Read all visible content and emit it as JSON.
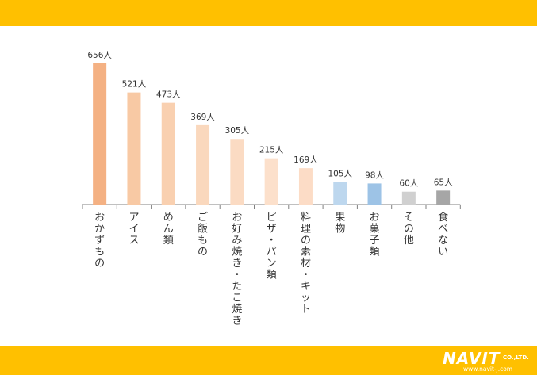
{
  "chart_data": {
    "type": "bar",
    "categories": [
      "おかずもの",
      "アイス",
      "めん類",
      "ご飯もの",
      "お好み焼き・たこ焼き",
      "ピザ・パン類",
      "料理の素材・キット",
      "果物",
      "お菓子類",
      "その他",
      "食べない"
    ],
    "values": [
      656,
      521,
      473,
      369,
      305,
      215,
      169,
      105,
      98,
      60,
      65
    ],
    "value_labels": [
      "656人",
      "521人",
      "473人",
      "369人",
      "305人",
      "215人",
      "169人",
      "105人",
      "98人",
      "60人",
      "65人"
    ],
    "bar_colors": [
      "#f4b183",
      "#f8c9a4",
      "#f9d0b0",
      "#fad8bd",
      "#fbdbc3",
      "#fce0cb",
      "#fcdcc6",
      "#bdd7ee",
      "#9dc3e6",
      "#d0d0d0",
      "#a6a6a6"
    ],
    "ylim": [
      0,
      700
    ],
    "unit": "人",
    "title": "",
    "xlabel": "",
    "ylabel": ""
  },
  "colors": {
    "band": "#ffc000",
    "axis": "#808080",
    "label": "#333333"
  },
  "brand": {
    "name": "NAVIT",
    "suffix": "CO.,LTD.",
    "url": "www.navit-j.com"
  }
}
